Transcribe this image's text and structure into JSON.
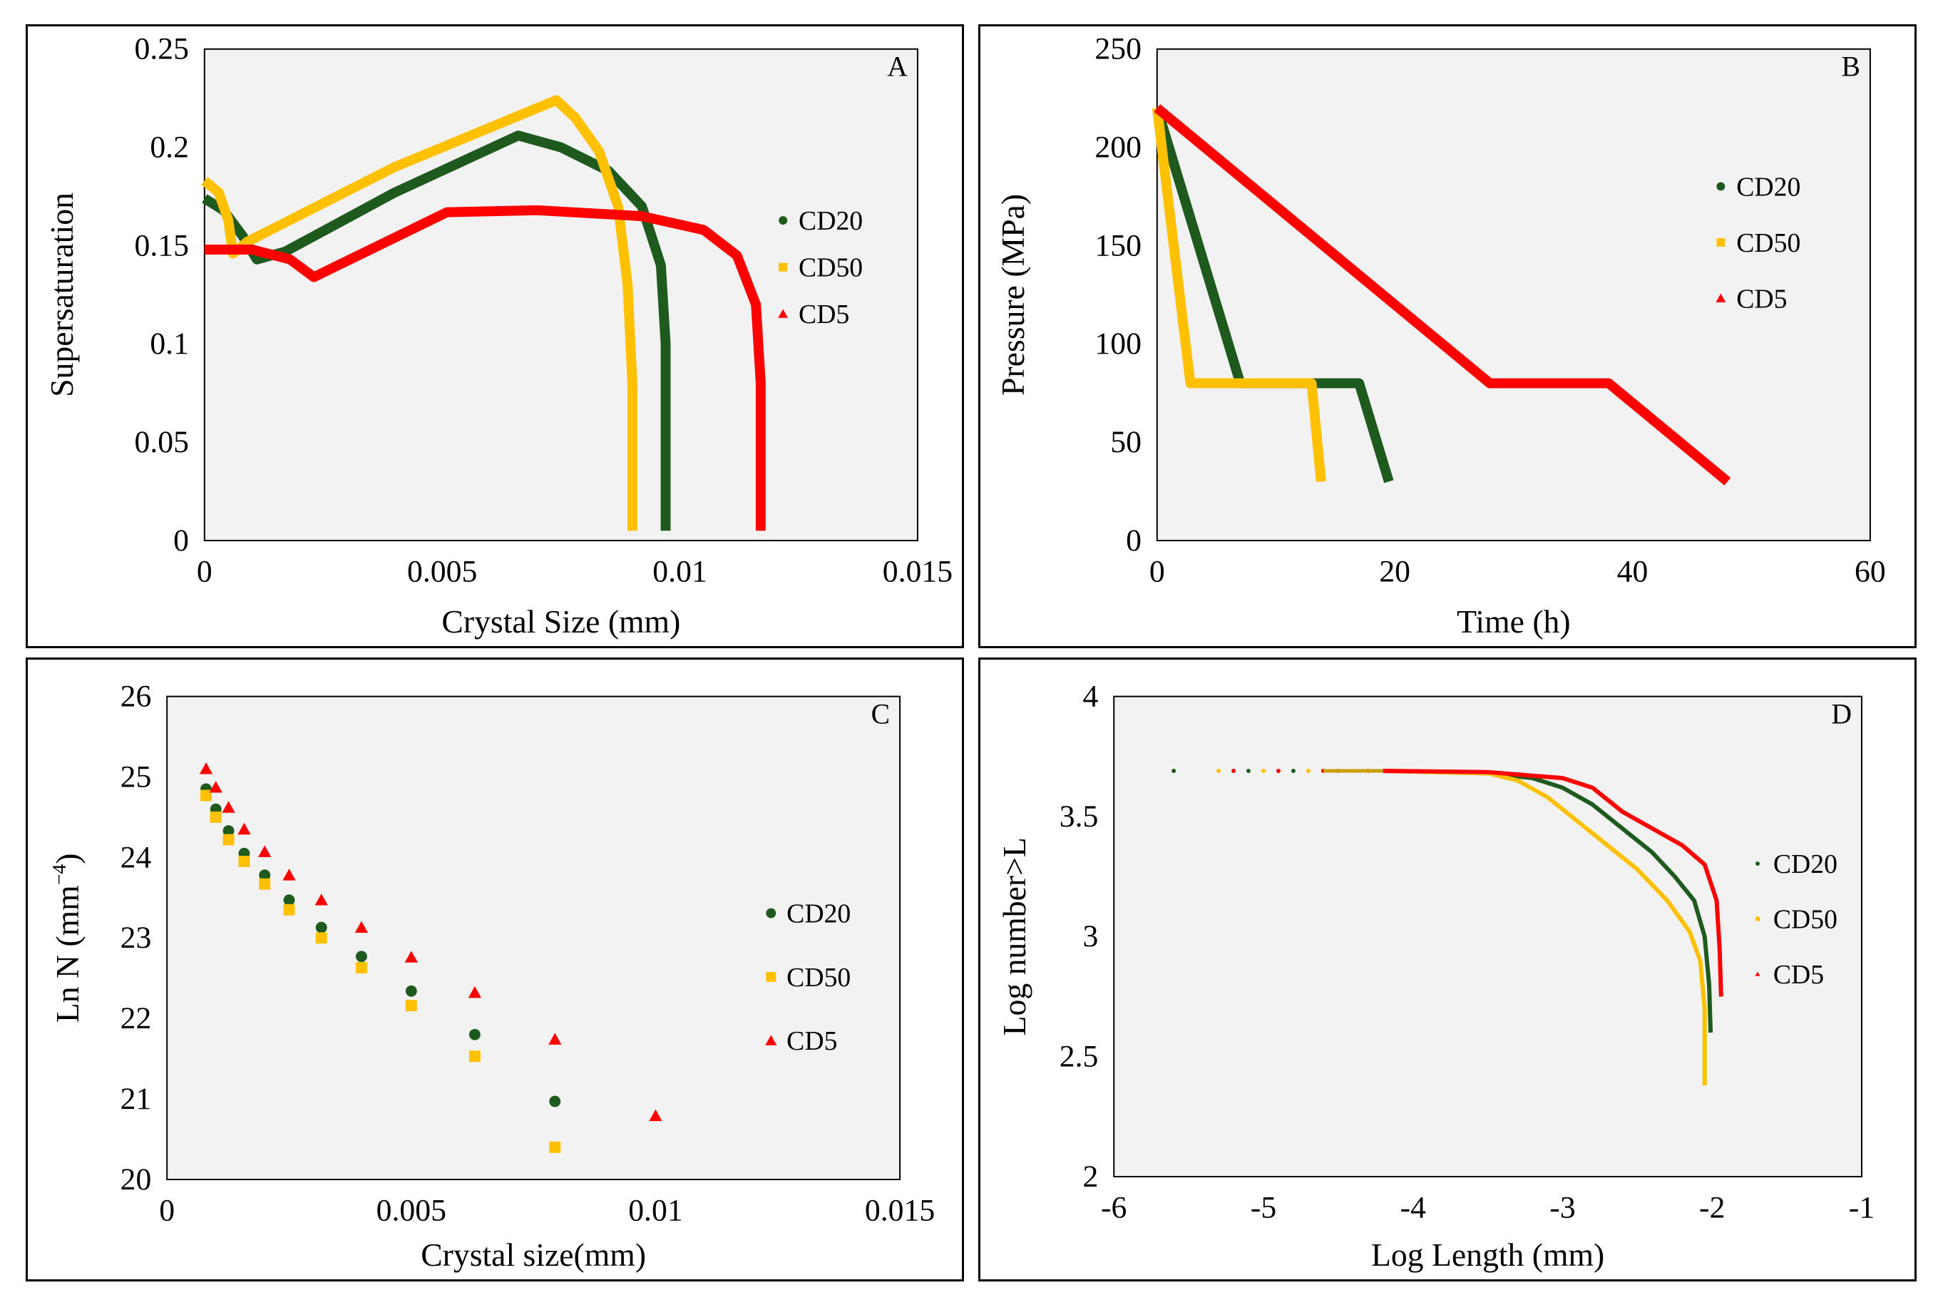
{
  "chart_data": [
    {
      "id": "A",
      "type": "line",
      "panel_label": "A",
      "title": "",
      "xlabel": "Crystal Size (mm)",
      "ylabel": "Supersaturation",
      "xlim": [
        0,
        0.015
      ],
      "ylim": [
        0,
        0.25
      ],
      "xticks": [
        0,
        0.005,
        0.01,
        0.015
      ],
      "xtick_labels": [
        "0",
        "0.005",
        "0.01",
        "0.015"
      ],
      "yticks": [
        0,
        0.05,
        0.1,
        0.15,
        0.2,
        0.25
      ],
      "ytick_labels": [
        "0",
        "0.05",
        "0.1",
        "0.15",
        "0.2",
        "0.25"
      ],
      "grid": false,
      "legend_position": "right",
      "series": [
        {
          "name": "CD20",
          "color": "#1e5a1e",
          "marker": "circle",
          "points": [
            [
              0,
              0.174
            ],
            [
              0.0004,
              0.168
            ],
            [
              0.0008,
              0.155
            ],
            [
              0.0011,
              0.143
            ],
            [
              0.0017,
              0.147
            ],
            [
              0.004,
              0.177
            ],
            [
              0.0066,
              0.206
            ],
            [
              0.0075,
              0.2
            ],
            [
              0.0085,
              0.188
            ],
            [
              0.0092,
              0.17
            ],
            [
              0.0096,
              0.14
            ],
            [
              0.0097,
              0.1
            ],
            [
              0.0097,
              0.05
            ],
            [
              0.0097,
              0.005
            ]
          ]
        },
        {
          "name": "CD50",
          "color": "#ffc000",
          "marker": "square",
          "points": [
            [
              0,
              0.183
            ],
            [
              0.0003,
              0.177
            ],
            [
              0.0005,
              0.163
            ],
            [
              0.0006,
              0.146
            ],
            [
              0.0009,
              0.152
            ],
            [
              0.004,
              0.19
            ],
            [
              0.0074,
              0.224
            ],
            [
              0.0078,
              0.215
            ],
            [
              0.0083,
              0.198
            ],
            [
              0.0087,
              0.17
            ],
            [
              0.0089,
              0.13
            ],
            [
              0.009,
              0.08
            ],
            [
              0.009,
              0.005
            ]
          ]
        },
        {
          "name": "CD5",
          "color": "#ff0000",
          "marker": "triangle",
          "points": [
            [
              0,
              0.148
            ],
            [
              0.001,
              0.148
            ],
            [
              0.0018,
              0.143
            ],
            [
              0.0023,
              0.134
            ],
            [
              0.0051,
              0.167
            ],
            [
              0.007,
              0.168
            ],
            [
              0.0092,
              0.165
            ],
            [
              0.0105,
              0.158
            ],
            [
              0.0112,
              0.145
            ],
            [
              0.0116,
              0.12
            ],
            [
              0.0117,
              0.08
            ],
            [
              0.0117,
              0.005
            ]
          ]
        }
      ]
    },
    {
      "id": "B",
      "type": "line",
      "panel_label": "B",
      "title": "",
      "xlabel": "Time (h)",
      "ylabel": "Pressure (MPa)",
      "xlim": [
        0,
        60
      ],
      "ylim": [
        0,
        250
      ],
      "xticks": [
        0,
        20,
        40,
        60
      ],
      "xtick_labels": [
        "0",
        "20",
        "40",
        "60"
      ],
      "yticks": [
        0,
        50,
        100,
        150,
        200,
        250
      ],
      "ytick_labels": [
        "0",
        "50",
        "100",
        "150",
        "200",
        "250"
      ],
      "grid": false,
      "legend_position": "top-right",
      "series": [
        {
          "name": "CD20",
          "color": "#1e5a1e",
          "marker": "circle",
          "points": [
            [
              0,
              220
            ],
            [
              7,
              80
            ],
            [
              17,
              80
            ],
            [
              19.5,
              30
            ]
          ]
        },
        {
          "name": "CD50",
          "color": "#ffc000",
          "marker": "square",
          "points": [
            [
              0,
              220
            ],
            [
              2.8,
              80
            ],
            [
              13,
              80
            ],
            [
              13.8,
              30
            ]
          ]
        },
        {
          "name": "CD5",
          "color": "#ff0000",
          "marker": "triangle",
          "points": [
            [
              0,
              220
            ],
            [
              28,
              80
            ],
            [
              38,
              80
            ],
            [
              48,
              30
            ]
          ]
        }
      ]
    },
    {
      "id": "C",
      "type": "scatter",
      "panel_label": "C",
      "title": "",
      "xlabel": "Crystal size(mm)",
      "ylabel": "Ln N (mm",
      "ylabel_sup": "−4",
      "ylabel_end": ")",
      "xlim": [
        0,
        0.015
      ],
      "ylim": [
        20,
        26
      ],
      "xticks": [
        0,
        0.005,
        0.01,
        0.015
      ],
      "xtick_labels": [
        "0",
        "0.005",
        "0.01",
        "0.015"
      ],
      "yticks": [
        20,
        21,
        22,
        23,
        24,
        25,
        26
      ],
      "ytick_labels": [
        "20",
        "21",
        "22",
        "23",
        "24",
        "25",
        "26"
      ],
      "grid": false,
      "legend_position": "right",
      "series": [
        {
          "name": "CD20",
          "color": "#1e5a1e",
          "marker": "circle",
          "x": [
            0.0008,
            0.001,
            0.00126,
            0.00158,
            0.002,
            0.0025,
            0.00316,
            0.00398,
            0.005,
            0.0063,
            0.00794
          ],
          "y": [
            24.85,
            24.6,
            24.33,
            24.05,
            23.78,
            23.47,
            23.13,
            22.77,
            22.34,
            21.8,
            20.97
          ]
        },
        {
          "name": "CD50",
          "color": "#ffc000",
          "marker": "square",
          "x": [
            0.0008,
            0.001,
            0.00126,
            0.00158,
            0.002,
            0.0025,
            0.00316,
            0.00398,
            0.005,
            0.0063,
            0.00794
          ],
          "y": [
            24.77,
            24.5,
            24.22,
            23.95,
            23.67,
            23.35,
            23.0,
            22.63,
            22.16,
            21.53,
            20.4
          ]
        },
        {
          "name": "CD5",
          "color": "#ff0000",
          "marker": "triangle",
          "x": [
            0.0008,
            0.001,
            0.00126,
            0.00158,
            0.002,
            0.0025,
            0.00316,
            0.00398,
            0.005,
            0.0063,
            0.00794,
            0.01
          ],
          "y": [
            25.1,
            24.87,
            24.62,
            24.35,
            24.07,
            23.78,
            23.47,
            23.13,
            22.76,
            22.32,
            21.74,
            20.79
          ]
        }
      ]
    },
    {
      "id": "D",
      "type": "line",
      "panel_label": "D",
      "title": "",
      "xlabel": "Log Length (mm)",
      "ylabel": "Log number>L",
      "xlim": [
        -6,
        -1
      ],
      "ylim": [
        2,
        4
      ],
      "xticks": [
        -6,
        -5,
        -4,
        -3,
        -2,
        -1
      ],
      "xtick_labels": [
        "-6",
        "-5",
        "-4",
        "-3",
        "-2",
        "-1"
      ],
      "yticks": [
        2,
        2.5,
        3,
        3.5,
        4
      ],
      "ytick_labels": [
        "2",
        "2.5",
        "3",
        "3.5",
        "4"
      ],
      "grid": false,
      "legend_position": "right",
      "sparse_points_x": [
        -5.6,
        -5.3,
        -5.2,
        -5.1,
        -5.0,
        -4.9,
        -4.8,
        -4.7,
        -4.6,
        -4.5,
        -4.4,
        -4.3
      ],
      "sparse_points_y": 3.69,
      "series": [
        {
          "name": "CD20",
          "color": "#1e5a1e",
          "marker": "circle",
          "points": [
            [
              -4.2,
              3.69
            ],
            [
              -3.5,
              3.68
            ],
            [
              -3.2,
              3.66
            ],
            [
              -3.0,
              3.62
            ],
            [
              -2.8,
              3.55
            ],
            [
              -2.6,
              3.45
            ],
            [
              -2.4,
              3.35
            ],
            [
              -2.25,
              3.25
            ],
            [
              -2.12,
              3.15
            ],
            [
              -2.05,
              3.0
            ],
            [
              -2.02,
              2.8
            ],
            [
              -2.01,
              2.6
            ]
          ]
        },
        {
          "name": "CD50",
          "color": "#ffc000",
          "marker": "square",
          "points": [
            [
              -4.2,
              3.69
            ],
            [
              -3.5,
              3.68
            ],
            [
              -3.3,
              3.65
            ],
            [
              -3.1,
              3.58
            ],
            [
              -2.9,
              3.48
            ],
            [
              -2.7,
              3.38
            ],
            [
              -2.5,
              3.28
            ],
            [
              -2.3,
              3.15
            ],
            [
              -2.15,
              3.02
            ],
            [
              -2.08,
              2.9
            ],
            [
              -2.05,
              2.7
            ],
            [
              -2.05,
              2.38
            ]
          ]
        },
        {
          "name": "CD5",
          "color": "#ff0000",
          "marker": "triangle",
          "points": [
            [
              -4.2,
              3.69
            ],
            [
              -3.5,
              3.685
            ],
            [
              -3.0,
              3.66
            ],
            [
              -2.8,
              3.62
            ],
            [
              -2.6,
              3.52
            ],
            [
              -2.4,
              3.45
            ],
            [
              -2.2,
              3.38
            ],
            [
              -2.05,
              3.3
            ],
            [
              -1.97,
              3.15
            ],
            [
              -1.95,
              2.95
            ],
            [
              -1.94,
              2.75
            ]
          ]
        }
      ]
    }
  ]
}
